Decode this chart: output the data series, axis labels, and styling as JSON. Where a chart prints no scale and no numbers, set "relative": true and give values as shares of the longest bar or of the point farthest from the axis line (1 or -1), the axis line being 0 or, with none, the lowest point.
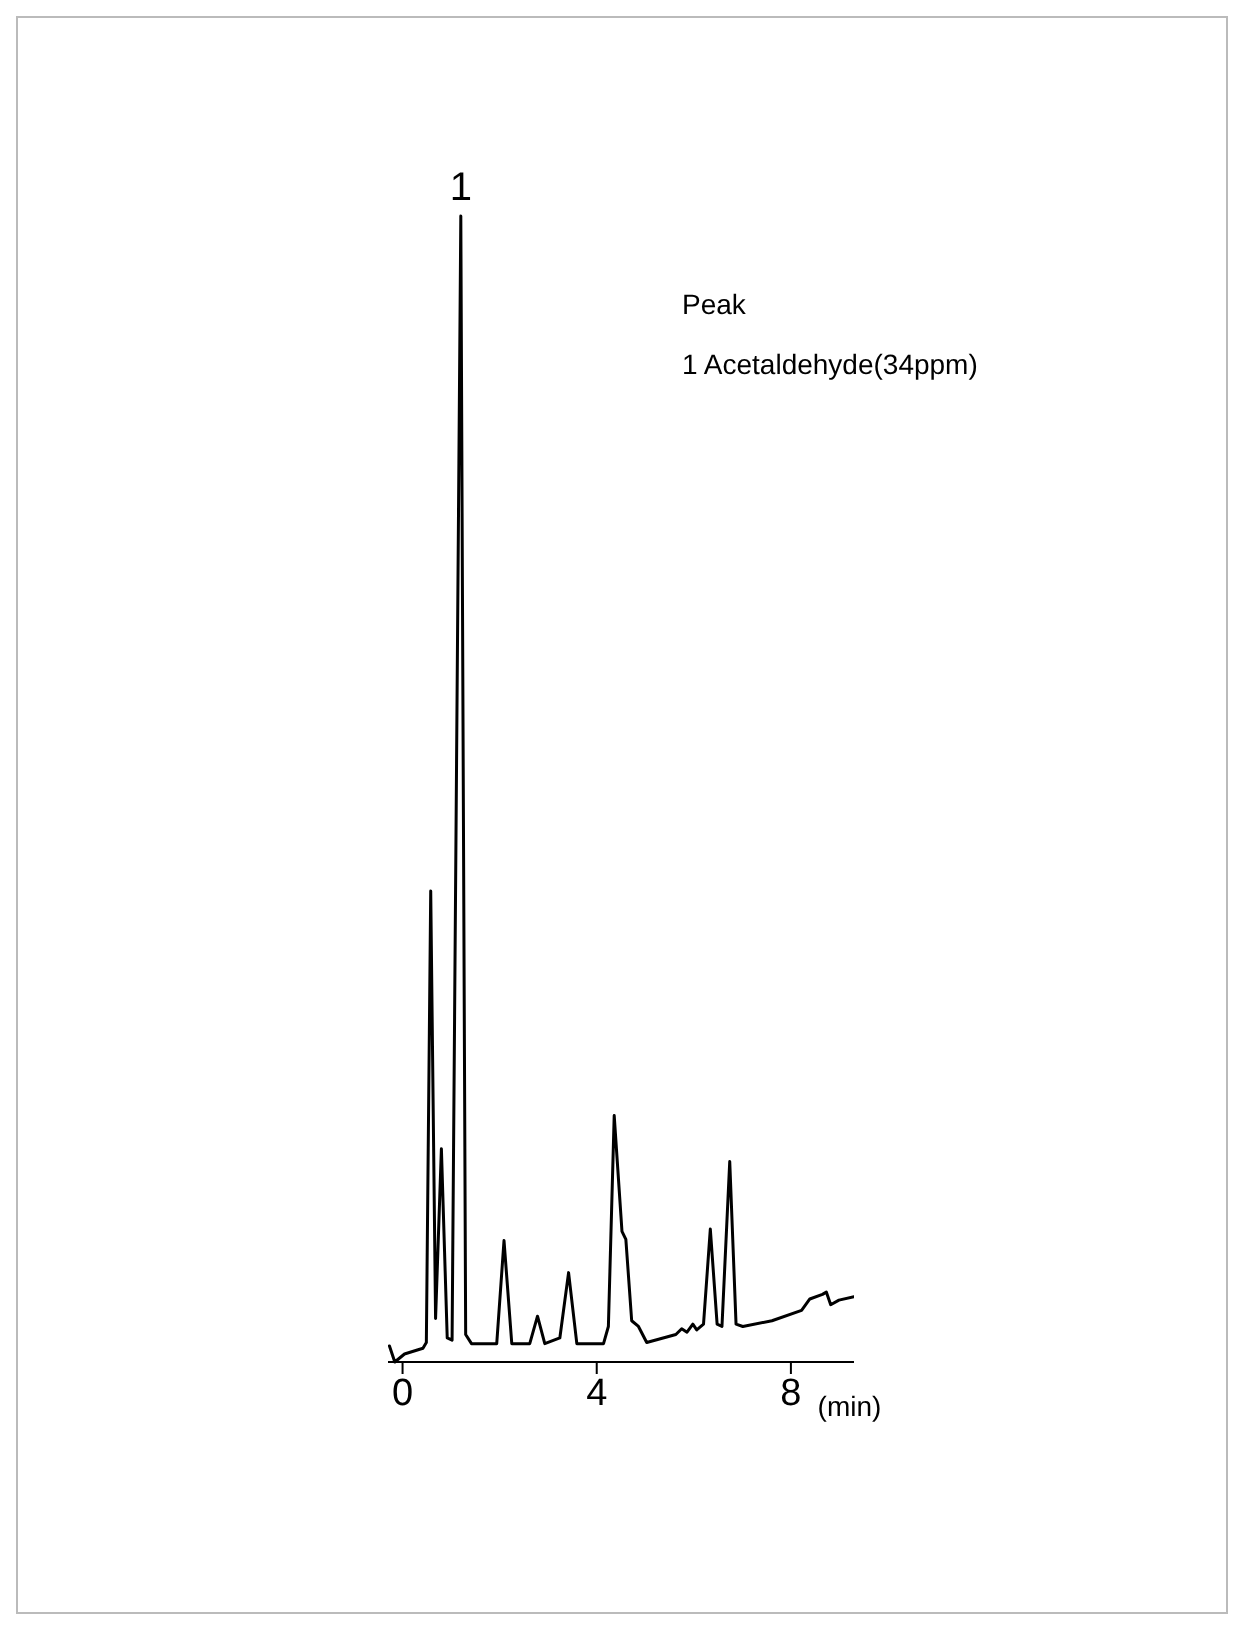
{
  "chart_data": {
    "type": "line",
    "relative": true,
    "xlabel": "(min)",
    "xlim": [
      -0.3,
      9.3
    ],
    "xticks": [
      0,
      4,
      8
    ],
    "color": "#000000",
    "marker": "none",
    "x": [
      -0.27,
      -0.16,
      0.04,
      0.42,
      0.49,
      0.58,
      0.68,
      0.8,
      0.92,
      1.02,
      1.2,
      1.3,
      1.42,
      1.94,
      2.09,
      2.25,
      2.62,
      2.78,
      2.93,
      3.24,
      3.42,
      3.59,
      4.14,
      4.24,
      4.36,
      4.52,
      4.6,
      4.72,
      4.86,
      5.03,
      5.63,
      5.75,
      5.86,
      5.98,
      6.06,
      6.2,
      6.34,
      6.48,
      6.58,
      6.74,
      6.87,
      7.01,
      7.61,
      8.22,
      8.39,
      8.65,
      8.73,
      8.82,
      8.99,
      9.3
    ],
    "values": [
      0.014,
      0,
      0.007,
      0.012,
      0.017,
      0.411,
      0.038,
      0.186,
      0.021,
      0.019,
      1,
      0.024,
      0.016,
      0.016,
      0.106,
      0.016,
      0.016,
      0.04,
      0.016,
      0.021,
      0.078,
      0.016,
      0.016,
      0.031,
      0.215,
      0.114,
      0.107,
      0.036,
      0.031,
      0.017,
      0.024,
      0.029,
      0.026,
      0.033,
      0.028,
      0.033,
      0.116,
      0.033,
      0.031,
      0.175,
      0.033,
      0.031,
      0.036,
      0.045,
      0.055,
      0.059,
      0.061,
      0.05,
      0.054,
      0.057
    ],
    "annotations": [
      {
        "text": "1",
        "x": 1.2,
        "y": 1
      },
      "Peak",
      "1 Acetaldehyde(34ppm)"
    ]
  }
}
